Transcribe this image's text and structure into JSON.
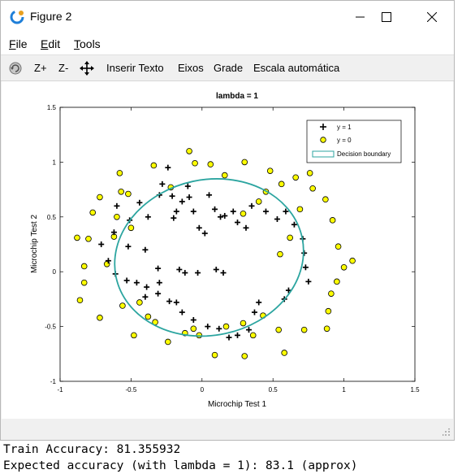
{
  "window": {
    "title": "Figure 2",
    "icon": "matlab-octave-icon"
  },
  "menu": {
    "file": {
      "accel": "F",
      "rest": "ile"
    },
    "edit": {
      "accel": "E",
      "rest": "dit"
    },
    "tools": {
      "accel": "T",
      "rest": "ools"
    }
  },
  "toolbar": {
    "zoom_in": "Z+",
    "zoom_out": "Z-",
    "insert_text": "Inserir Texto",
    "axes": "Eixos",
    "grid": "Grade",
    "autoscale": "Escala automática"
  },
  "colors": {
    "positive_marker": "#000000",
    "negative_marker_fill": "#ffff00",
    "boundary": "#2ca5a0"
  },
  "chart_data": {
    "type": "scatter",
    "title": "lambda = 1",
    "xlabel": "Microchip Test 1",
    "ylabel": "Microchip Test 2",
    "xlim": [
      -1,
      1.5
    ],
    "ylim": [
      -1,
      1.5
    ],
    "xticks": [
      -1,
      -0.5,
      0,
      0.5,
      1,
      1.5
    ],
    "yticks": [
      -1,
      -0.5,
      0,
      0.5,
      1,
      1.5
    ],
    "xtick_labels": [
      "-1",
      "-0.5",
      "0",
      "0.5",
      "1",
      "1.5"
    ],
    "ytick_labels": [
      "-1",
      "-0.5",
      "0",
      "0.5",
      "1",
      "1.5"
    ],
    "legend": {
      "position": "top-right",
      "entries": [
        "y = 1",
        "y = 0",
        "Decision boundary"
      ]
    },
    "series": [
      {
        "name": "y = 1",
        "marker": "plus",
        "points": [
          [
            0.05,
            0.7
          ],
          [
            -0.09,
            0.68
          ],
          [
            -0.21,
            0.69
          ],
          [
            -0.38,
            0.5
          ],
          [
            -0.51,
            0.47
          ],
          [
            -0.52,
            0.23
          ],
          [
            -0.4,
            0.2
          ],
          [
            -0.31,
            0.03
          ],
          [
            -0.16,
            0.02
          ],
          [
            -0.06,
            0.55
          ],
          [
            -0.02,
            0.4
          ],
          [
            0.02,
            0.35
          ],
          [
            0.13,
            0.5
          ],
          [
            0.22,
            0.55
          ],
          [
            0.35,
            0.6
          ],
          [
            0.45,
            0.55
          ],
          [
            0.53,
            0.48
          ],
          [
            0.59,
            0.55
          ],
          [
            0.65,
            0.43
          ],
          [
            0.71,
            0.3
          ],
          [
            0.72,
            0.17
          ],
          [
            0.73,
            0.04
          ],
          [
            0.75,
            -0.09
          ],
          [
            0.61,
            -0.17
          ],
          [
            0.58,
            -0.25
          ],
          [
            0.4,
            -0.28
          ],
          [
            0.37,
            -0.37
          ],
          [
            0.33,
            -0.53
          ],
          [
            0.25,
            -0.58
          ],
          [
            0.19,
            -0.6
          ],
          [
            0.12,
            -0.52
          ],
          [
            0.04,
            -0.5
          ],
          [
            -0.06,
            -0.44
          ],
          [
            -0.14,
            -0.37
          ],
          [
            -0.23,
            -0.27
          ],
          [
            -0.31,
            -0.2
          ],
          [
            -0.39,
            -0.14
          ],
          [
            -0.46,
            -0.1
          ],
          [
            -0.53,
            -0.08
          ],
          [
            -0.61,
            -0.02
          ],
          [
            -0.66,
            0.1
          ],
          [
            -0.71,
            0.25
          ],
          [
            -0.62,
            0.36
          ],
          [
            -0.6,
            0.6
          ],
          [
            -0.44,
            0.63
          ],
          [
            -0.3,
            0.7
          ],
          [
            -0.28,
            0.8
          ],
          [
            -0.24,
            0.95
          ],
          [
            -0.18,
            0.55
          ],
          [
            -0.14,
            0.64
          ],
          [
            -0.1,
            0.78
          ],
          [
            -0.2,
            0.49
          ],
          [
            0.09,
            0.57
          ],
          [
            0.16,
            0.51
          ],
          [
            0.25,
            0.45
          ],
          [
            0.31,
            0.4
          ],
          [
            -0.3,
            -0.1
          ],
          [
            -0.12,
            -0.01
          ],
          [
            -0.03,
            -0.01
          ],
          [
            0.1,
            0.02
          ],
          [
            0.15,
            -0.01
          ],
          [
            -0.4,
            -0.23
          ],
          [
            -0.18,
            -0.28
          ]
        ]
      },
      {
        "name": "y = 0",
        "marker": "circle",
        "points": [
          [
            -0.09,
            1.1
          ],
          [
            -0.34,
            0.97
          ],
          [
            -0.58,
            0.9
          ],
          [
            -0.57,
            0.73
          ],
          [
            -0.72,
            0.68
          ],
          [
            -0.77,
            0.54
          ],
          [
            -0.8,
            0.3
          ],
          [
            -0.88,
            0.31
          ],
          [
            -0.83,
            0.05
          ],
          [
            -0.83,
            -0.1
          ],
          [
            -0.86,
            -0.26
          ],
          [
            -0.72,
            -0.42
          ],
          [
            -0.56,
            -0.31
          ],
          [
            -0.44,
            -0.28
          ],
          [
            -0.38,
            -0.41
          ],
          [
            -0.24,
            -0.64
          ],
          [
            -0.12,
            -0.56
          ],
          [
            -0.02,
            -0.58
          ],
          [
            0.09,
            -0.76
          ],
          [
            0.3,
            -0.77
          ],
          [
            0.36,
            -0.58
          ],
          [
            0.54,
            -0.53
          ],
          [
            0.58,
            -0.74
          ],
          [
            0.72,
            -0.53
          ],
          [
            0.88,
            -0.52
          ],
          [
            0.89,
            -0.36
          ],
          [
            0.91,
            -0.2
          ],
          [
            0.95,
            -0.09
          ],
          [
            1.0,
            0.04
          ],
          [
            1.06,
            0.1
          ],
          [
            0.96,
            0.23
          ],
          [
            0.92,
            0.47
          ],
          [
            0.87,
            0.66
          ],
          [
            0.78,
            0.76
          ],
          [
            0.76,
            0.9
          ],
          [
            0.66,
            0.86
          ],
          [
            0.56,
            0.8
          ],
          [
            0.45,
            0.73
          ],
          [
            0.4,
            0.64
          ],
          [
            0.29,
            0.53
          ],
          [
            -0.05,
            0.99
          ],
          [
            0.06,
            0.98
          ],
          [
            0.16,
            0.88
          ],
          [
            0.3,
            1.0
          ],
          [
            0.48,
            0.92
          ],
          [
            0.69,
            0.57
          ],
          [
            0.62,
            0.31
          ],
          [
            0.55,
            0.16
          ],
          [
            0.43,
            -0.4
          ],
          [
            0.29,
            -0.47
          ],
          [
            -0.33,
            -0.46
          ],
          [
            -0.48,
            -0.58
          ],
          [
            -0.62,
            0.32
          ],
          [
            -0.67,
            0.07
          ],
          [
            -0.5,
            0.4
          ],
          [
            -0.22,
            0.77
          ],
          [
            -0.52,
            0.71
          ],
          [
            -0.6,
            0.5
          ],
          [
            -0.06,
            -0.52
          ],
          [
            0.17,
            -0.5
          ]
        ]
      }
    ],
    "boundary": {
      "shape": "ellipse",
      "center": [
        0.05,
        0.13
      ],
      "semi_axes": [
        0.67,
        0.71
      ],
      "rotation_deg": -12
    }
  },
  "console": {
    "line1": "Train Accuracy: 81.355932",
    "line2": "Expected accuracy (with lambda = 1): 83.1 (approx)"
  }
}
